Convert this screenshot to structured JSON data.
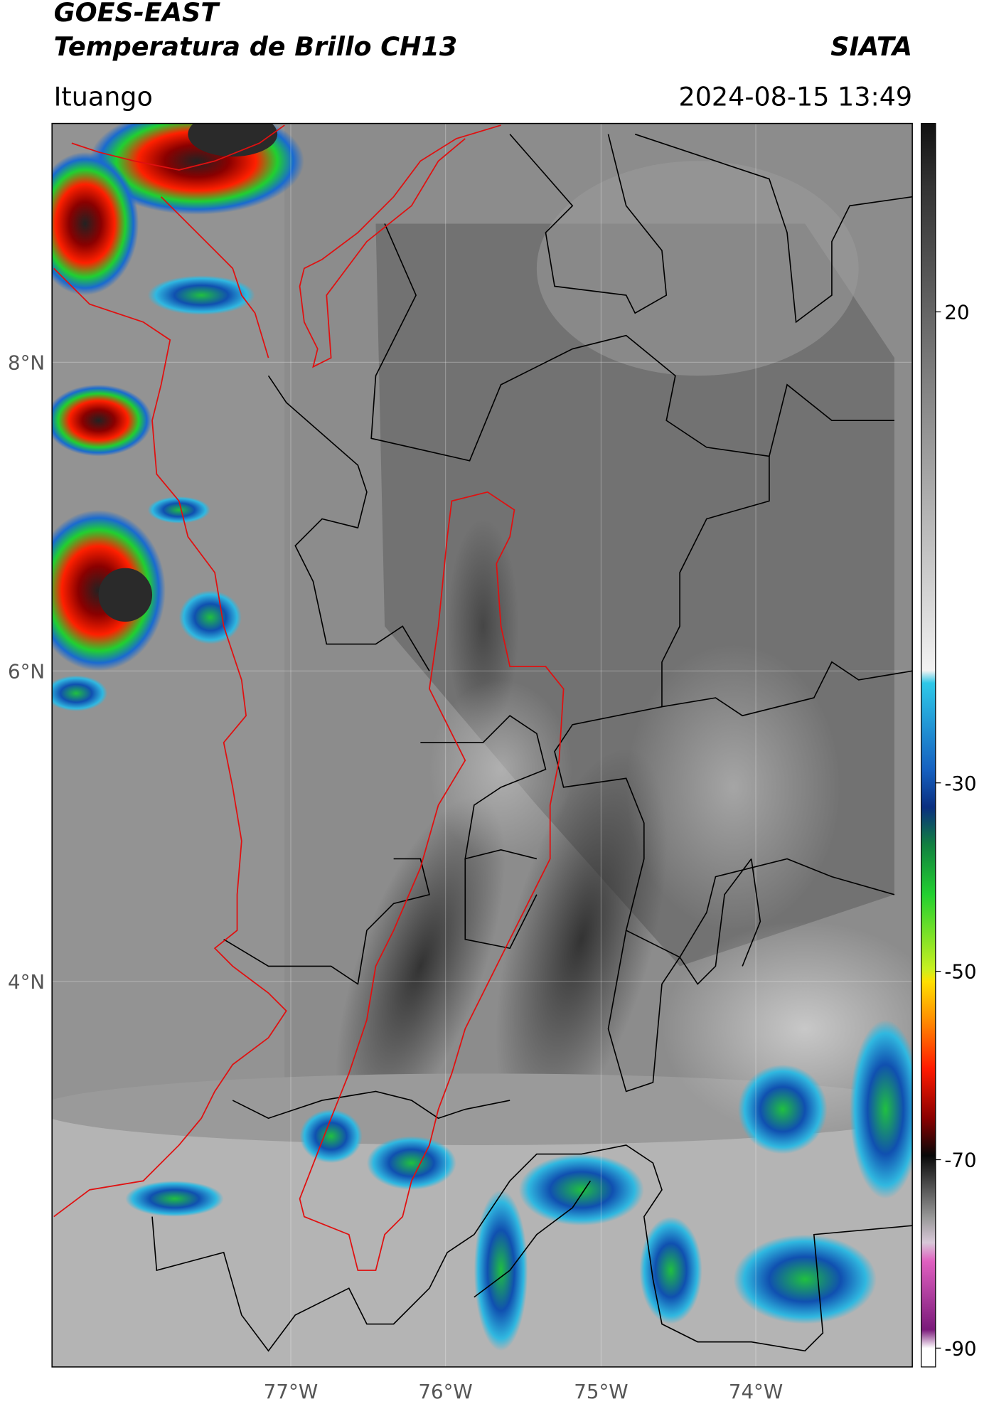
{
  "header": {
    "line1": "GOES-EAST",
    "line2": "Temperatura de Brillo CH13",
    "agency": "SIATA",
    "location": "Ituango",
    "datetime": "2024-08-15 13:49"
  },
  "map": {
    "lat_labels": [
      "8°N",
      "6°N",
      "4°N"
    ],
    "lon_labels": [
      "77°W",
      "76°W",
      "75°W",
      "74°W"
    ]
  },
  "colorbar": {
    "lim": [
      -92,
      40
    ],
    "ticks": [
      20,
      -30,
      -50,
      -70,
      -90
    ]
  }
}
